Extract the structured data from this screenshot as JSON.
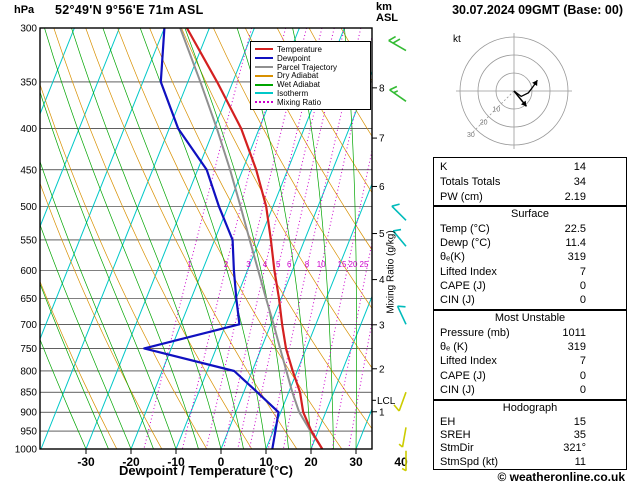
{
  "header": {
    "pressure_unit": "hPa",
    "station": "52°49'N 9°56'E 71m ASL",
    "altitude_unit_line1": "km",
    "altitude_unit_line2": "ASL",
    "datetime": "30.07.2024 09GMT (Base: 00)"
  },
  "legend": {
    "items": [
      {
        "label": "Temperature",
        "color": "#d42020",
        "dash": false
      },
      {
        "label": "Dewpoint",
        "color": "#1010c0",
        "dash": false
      },
      {
        "label": "Parcel Trajectory",
        "color": "#909090",
        "dash": false
      },
      {
        "label": "Dry Adiabat",
        "color": "#d89000",
        "dash": false
      },
      {
        "label": "Wet Adiabat",
        "color": "#00a500",
        "dash": false
      },
      {
        "label": "Isotherm",
        "color": "#00c8c8",
        "dash": false
      },
      {
        "label": "Mixing Ratio",
        "color": "#cc00cc",
        "dash": true
      }
    ]
  },
  "axes": {
    "x_label": "Dewpoint / Temperature (°C)",
    "x_ticks": [
      -30,
      -20,
      -10,
      0,
      10,
      20,
      30,
      40
    ],
    "pressure_ticks": [
      300,
      350,
      400,
      450,
      500,
      550,
      600,
      650,
      700,
      750,
      800,
      850,
      900,
      950,
      1000
    ],
    "km_ticks": [
      {
        "km": 8,
        "hpa": 356
      },
      {
        "km": 7,
        "hpa": 411
      },
      {
        "km": 6,
        "hpa": 472
      },
      {
        "km": 5,
        "hpa": 540
      },
      {
        "km": 4,
        "hpa": 616
      },
      {
        "km": 3,
        "hpa": 701
      },
      {
        "km": 2,
        "hpa": 795
      },
      {
        "km": 1,
        "hpa": 899
      }
    ],
    "lcl_label": "LCL",
    "lcl_hpa": 870,
    "mixing_ratio_axis_label": "Mixing Ratio (g/kg)"
  },
  "chart_data": {
    "type": "line",
    "diagram": "skew-t log-p sounding",
    "title": "52°49'N 9°56'E 71m ASL",
    "datetime": "30.07.2024 09GMT (Base: 00)",
    "xlabel": "Dewpoint / Temperature (°C)",
    "ylabel": "hPa",
    "x_range_c": [
      -30,
      40
    ],
    "pressure_range_hpa": [
      300,
      1000
    ],
    "isotherm_step_c": 10,
    "mixing_ratio_lines_g_kg": [
      1,
      2,
      3,
      4,
      5,
      6,
      8,
      10,
      15,
      20,
      25
    ],
    "pressure_levels_hpa": [
      1000,
      950,
      900,
      850,
      800,
      750,
      700,
      650,
      600,
      550,
      500,
      450,
      400,
      350,
      300
    ],
    "series": [
      {
        "name": "Temperature",
        "color": "#d42020",
        "values_c": [
          22.5,
          18.5,
          15,
          12.5,
          9,
          5.5,
          2.5,
          -0.5,
          -4,
          -7.5,
          -11.5,
          -17,
          -24,
          -33.5,
          -45
        ]
      },
      {
        "name": "Dewpoint",
        "color": "#1010c0",
        "values_c": [
          11.4,
          10.5,
          9.5,
          3,
          -4,
          -26,
          -7,
          -10,
          -13,
          -16,
          -22,
          -28,
          -38,
          -46,
          -50
        ]
      },
      {
        "name": "Parcel Trajectory",
        "color": "#909090",
        "values_c": [
          22.5,
          18.3,
          14.1,
          10.8,
          7.6,
          4.2,
          0.6,
          -3.4,
          -7.6,
          -12.2,
          -17.2,
          -22.8,
          -29.4,
          -37.2,
          -46.5
        ]
      }
    ],
    "wind_barbs": [
      {
        "hpa": 320,
        "dir_deg": 300,
        "speed_kt": 20,
        "color": "#33bb33"
      },
      {
        "hpa": 370,
        "dir_deg": 305,
        "speed_kt": 15,
        "color": "#33bb33"
      },
      {
        "hpa": 520,
        "dir_deg": 315,
        "speed_kt": 10,
        "color": "#00bbbb"
      },
      {
        "hpa": 560,
        "dir_deg": 320,
        "speed_kt": 10,
        "color": "#00bbbb"
      },
      {
        "hpa": 700,
        "dir_deg": 335,
        "speed_kt": 10,
        "color": "#00bbbb"
      },
      {
        "hpa": 850,
        "dir_deg": 200,
        "speed_kt": 10,
        "color": "#cccc00"
      },
      {
        "hpa": 940,
        "dir_deg": 190,
        "speed_kt": 5,
        "color": "#cccc00"
      },
      {
        "hpa": 1005,
        "dir_deg": 180,
        "speed_kt": 5,
        "color": "#cccc00"
      }
    ],
    "hodograph": {
      "unit_label": "kt",
      "ring_labels_kt": [
        10,
        20,
        30
      ],
      "storm_dir_deg": 321,
      "storm_speed_kt": 11,
      "trace_uv_kt": [
        [
          0,
          0
        ],
        [
          4,
          -3
        ],
        [
          8,
          -1
        ],
        [
          11,
          3
        ],
        [
          13,
          6
        ]
      ]
    }
  },
  "stats": {
    "indices": {
      "rows": [
        [
          "K",
          "14"
        ],
        [
          "Totals Totals",
          "34"
        ],
        [
          "PW (cm)",
          "2.19"
        ]
      ]
    },
    "surface": {
      "title": "Surface",
      "rows": [
        [
          "Temp (°C)",
          "22.5"
        ],
        [
          "Dewp (°C)",
          "11.4"
        ],
        [
          "θₑ(K)",
          "319"
        ],
        [
          "Lifted Index",
          "7"
        ],
        [
          "CAPE (J)",
          "0"
        ],
        [
          "CIN (J)",
          "0"
        ]
      ]
    },
    "most_unstable": {
      "title": "Most Unstable",
      "rows": [
        [
          "Pressure (mb)",
          "1011"
        ],
        [
          "θₑ (K)",
          "319"
        ],
        [
          "Lifted Index",
          "7"
        ],
        [
          "CAPE (J)",
          "0"
        ],
        [
          "CIN (J)",
          "0"
        ]
      ]
    },
    "hodograph": {
      "title": "Hodograph",
      "rows": [
        [
          "EH",
          "15"
        ],
        [
          "SREH",
          "35"
        ],
        [
          "StmDir",
          "321°"
        ],
        [
          "StmSpd (kt)",
          "11"
        ]
      ]
    }
  },
  "footer": {
    "copyright": "© weatheronline.co.uk"
  }
}
